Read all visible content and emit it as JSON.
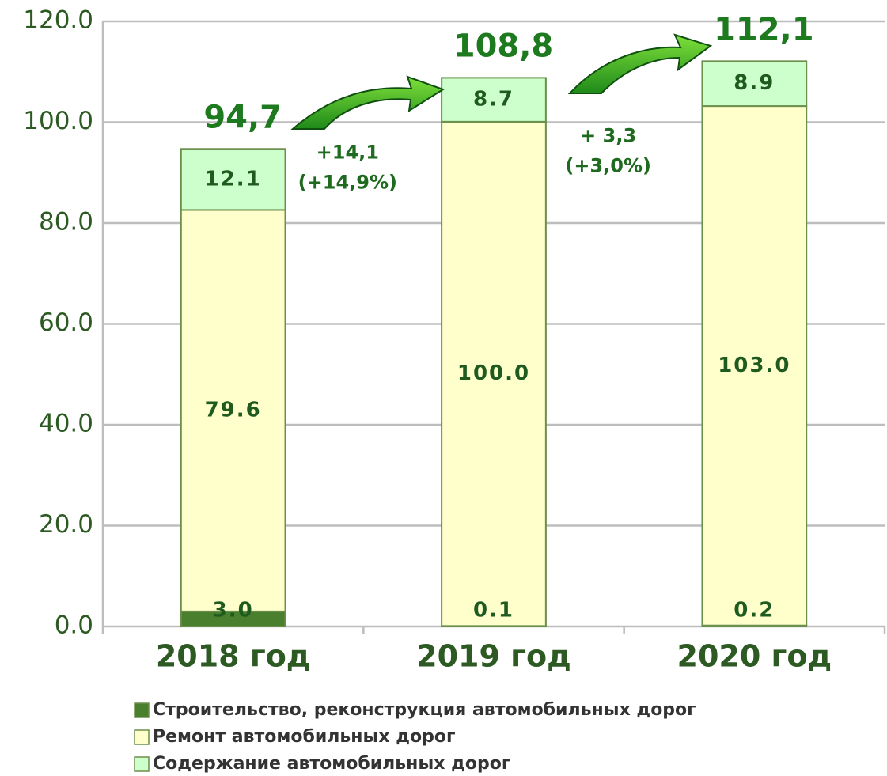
{
  "chart_data": {
    "type": "stacked_bar",
    "categories": [
      "2018 год",
      "2019 год",
      "2020 год"
    ],
    "series": [
      {
        "name": "Строительство, реконструкция автомобильных дорог",
        "color": "#4a7f2e",
        "values": [
          3.0,
          0.1,
          0.2
        ],
        "value_labels": [
          "3.0",
          "0.1",
          "0.2"
        ]
      },
      {
        "name": "Ремонт автомобильных дорог",
        "color": "#ffffcc",
        "values": [
          79.6,
          100.0,
          103.0
        ],
        "value_labels": [
          "79.6",
          "100.0",
          "103.0"
        ]
      },
      {
        "name": "Содержание автомобильных дорог",
        "color": "#ccffcc",
        "values": [
          12.1,
          8.7,
          8.9
        ],
        "value_labels": [
          "12.1",
          "8.7",
          "8.9"
        ]
      }
    ],
    "totals": [
      94.7,
      108.8,
      112.1
    ],
    "total_labels": [
      "94,7",
      "108,8",
      "112,1"
    ],
    "annotations": [
      [
        "+14,1",
        "(+14,9%)"
      ],
      [
        "+ 3,3",
        "(+3,0%)"
      ]
    ],
    "ylim": [
      0,
      120
    ],
    "yticks": [
      {
        "value": 0,
        "label": "0.0"
      },
      {
        "value": 20,
        "label": "20.0"
      },
      {
        "value": 40,
        "label": "40.0"
      },
      {
        "value": 60,
        "label": "60.0"
      },
      {
        "value": 80,
        "label": "80.0"
      },
      {
        "value": 100,
        "label": "100.0"
      },
      {
        "value": 120,
        "label": "120.0"
      }
    ],
    "grid": true
  }
}
